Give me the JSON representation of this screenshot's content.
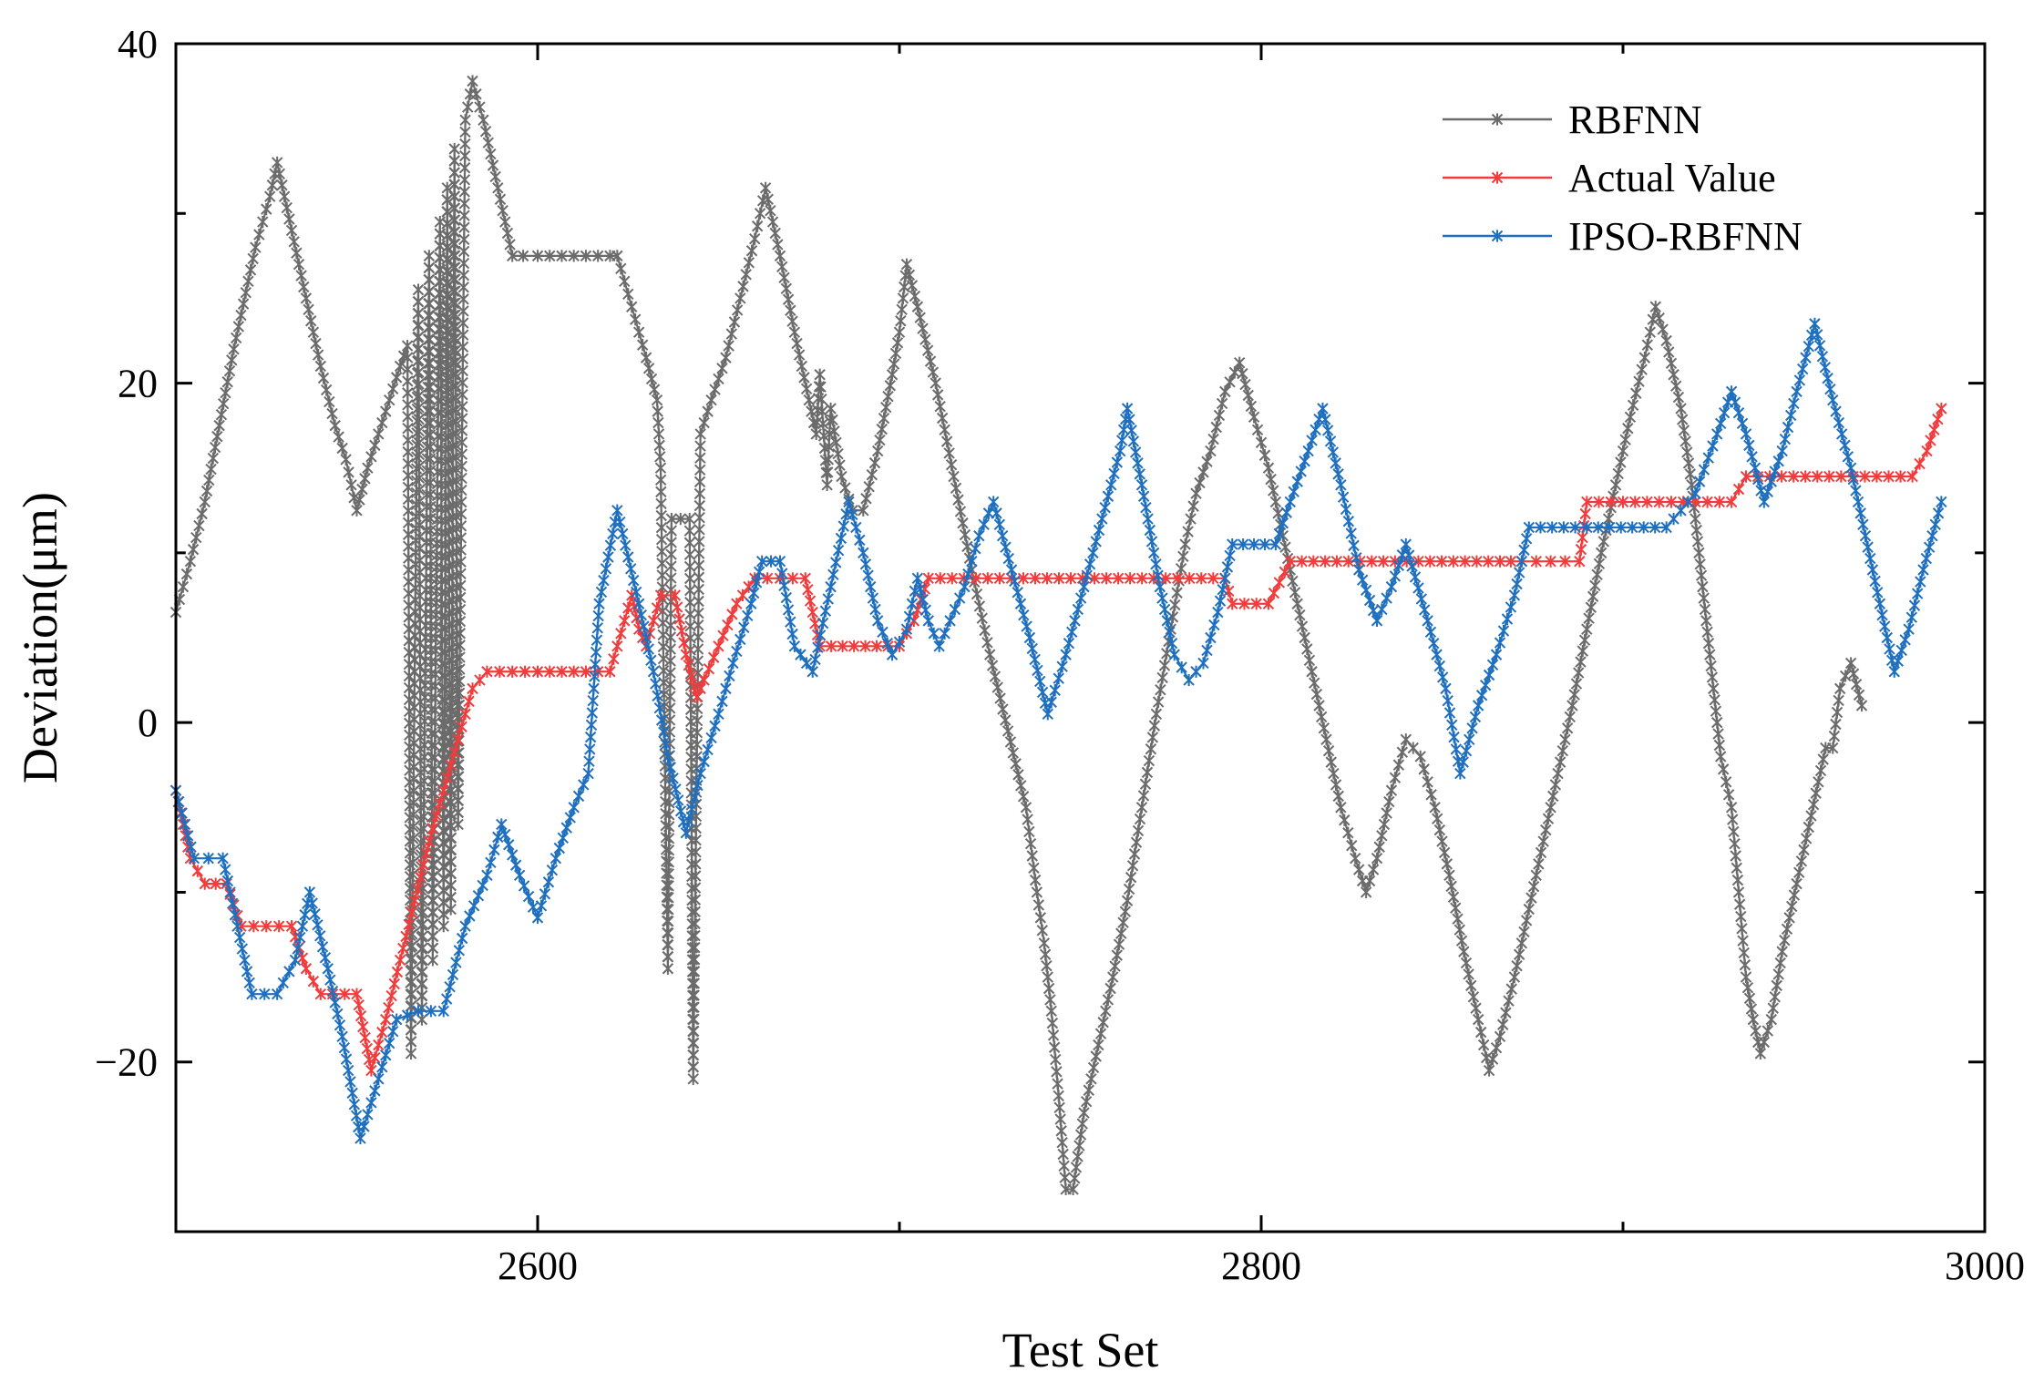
{
  "chart_data": {
    "type": "line",
    "title": "",
    "xlabel": "Test Set",
    "ylabel": "Deviation(μm)",
    "xlim": [
      2500,
      3000
    ],
    "ylim": [
      -30,
      40
    ],
    "xticks": [
      2600,
      2800,
      3000
    ],
    "yticks": [
      -20,
      0,
      20,
      40
    ],
    "grid": false,
    "legend_position": "top-right",
    "series": [
      {
        "name": "RBFNN",
        "color": "#6b6b6b",
        "points": [
          [
            2500,
            6.5
          ],
          [
            2504,
            9.5
          ],
          [
            2508,
            13
          ],
          [
            2512,
            17.5
          ],
          [
            2516,
            22
          ],
          [
            2518,
            24
          ],
          [
            2522,
            28
          ],
          [
            2526,
            31
          ],
          [
            2528,
            33
          ],
          [
            2532,
            29
          ],
          [
            2536,
            25
          ],
          [
            2540,
            21
          ],
          [
            2544,
            17.5
          ],
          [
            2547,
            15.5
          ],
          [
            2550,
            12.5
          ],
          [
            2553,
            15
          ],
          [
            2556,
            17
          ],
          [
            2559,
            19
          ],
          [
            2562,
            21
          ],
          [
            2564,
            22.2
          ],
          [
            2565,
            -19.5
          ],
          [
            2567,
            25.5
          ],
          [
            2568,
            -17.5
          ],
          [
            2570,
            27.5
          ],
          [
            2571,
            -14
          ],
          [
            2573,
            29.5
          ],
          [
            2574,
            -12
          ],
          [
            2575,
            31.5
          ],
          [
            2576,
            -11
          ],
          [
            2577,
            33.8
          ],
          [
            2578,
            -6
          ],
          [
            2580,
            35.5
          ],
          [
            2582,
            37.8
          ],
          [
            2585,
            35.5
          ],
          [
            2589,
            31.5
          ],
          [
            2593,
            27.5
          ],
          [
            2596,
            27.5
          ],
          [
            2600,
            27.5
          ],
          [
            2610,
            27.5
          ],
          [
            2620,
            27.5
          ],
          [
            2622,
            27.5
          ],
          [
            2626,
            24.5
          ],
          [
            2630,
            21.5
          ],
          [
            2633,
            19
          ],
          [
            2634,
            15
          ],
          [
            2636,
            -14.5
          ],
          [
            2637,
            12
          ],
          [
            2642,
            12
          ],
          [
            2643,
            -21
          ],
          [
            2645,
            17
          ],
          [
            2648,
            19
          ],
          [
            2652,
            21.5
          ],
          [
            2656,
            25
          ],
          [
            2660,
            28.5
          ],
          [
            2663,
            31.5
          ],
          [
            2667,
            27.5
          ],
          [
            2671,
            23
          ],
          [
            2675,
            19
          ],
          [
            2677,
            17
          ],
          [
            2678,
            20.5
          ],
          [
            2680,
            14
          ],
          [
            2681,
            18.5
          ],
          [
            2684,
            14.5
          ],
          [
            2687,
            12.5
          ],
          [
            2690,
            12.5
          ],
          [
            2694,
            16
          ],
          [
            2698,
            20.5
          ],
          [
            2700,
            23
          ],
          [
            2702,
            27
          ],
          [
            2705,
            24.5
          ],
          [
            2710,
            20
          ],
          [
            2715,
            14.5
          ],
          [
            2720,
            9
          ],
          [
            2725,
            4
          ],
          [
            2730,
            -0.5
          ],
          [
            2735,
            -5
          ],
          [
            2738,
            -10
          ],
          [
            2740,
            -13
          ],
          [
            2742,
            -17
          ],
          [
            2744,
            -22
          ],
          [
            2746,
            -27.5
          ],
          [
            2748,
            -27.5
          ],
          [
            2751,
            -23
          ],
          [
            2755,
            -19
          ],
          [
            2759,
            -15
          ],
          [
            2763,
            -10.5
          ],
          [
            2767,
            -5
          ],
          [
            2771,
            0.5
          ],
          [
            2775,
            5.5
          ],
          [
            2779,
            10.5
          ],
          [
            2782,
            13.5
          ],
          [
            2786,
            16
          ],
          [
            2790,
            19.5
          ],
          [
            2794,
            21.2
          ],
          [
            2798,
            18
          ],
          [
            2802,
            15
          ],
          [
            2806,
            11
          ],
          [
            2810,
            7
          ],
          [
            2814,
            3
          ],
          [
            2818,
            -1
          ],
          [
            2822,
            -5
          ],
          [
            2826,
            -8
          ],
          [
            2829,
            -10
          ],
          [
            2832,
            -8
          ],
          [
            2836,
            -4
          ],
          [
            2840,
            -1
          ],
          [
            2844,
            -2
          ],
          [
            2848,
            -5
          ],
          [
            2852,
            -9
          ],
          [
            2856,
            -13.5
          ],
          [
            2860,
            -17.5
          ],
          [
            2863,
            -20.5
          ],
          [
            2866,
            -18.5
          ],
          [
            2870,
            -15
          ],
          [
            2874,
            -11
          ],
          [
            2878,
            -7
          ],
          [
            2882,
            -3
          ],
          [
            2886,
            1
          ],
          [
            2890,
            5.5
          ],
          [
            2894,
            10
          ],
          [
            2898,
            14
          ],
          [
            2902,
            18
          ],
          [
            2906,
            21.5
          ],
          [
            2909,
            24.5
          ],
          [
            2912,
            22.5
          ],
          [
            2916,
            18.5
          ],
          [
            2919,
            14
          ],
          [
            2922,
            8
          ],
          [
            2925,
            2
          ],
          [
            2927,
            -2
          ],
          [
            2930,
            -5
          ],
          [
            2932,
            -10
          ],
          [
            2934,
            -15
          ],
          [
            2936,
            -17.5
          ],
          [
            2938,
            -19.5
          ],
          [
            2941,
            -17.5
          ],
          [
            2944,
            -13.5
          ],
          [
            2948,
            -9.5
          ],
          [
            2952,
            -5.5
          ],
          [
            2956,
            -1.5
          ],
          [
            2958,
            -1.5
          ],
          [
            2960,
            2
          ],
          [
            2963,
            3.5
          ],
          [
            2966,
            1
          ]
        ]
      },
      {
        "name": "Actual Value",
        "color": "#f03c3c",
        "points": [
          [
            2500,
            -4
          ],
          [
            2504,
            -8
          ],
          [
            2508,
            -9.5
          ],
          [
            2514,
            -9.5
          ],
          [
            2518,
            -12
          ],
          [
            2532,
            -12
          ],
          [
            2536,
            -14.5
          ],
          [
            2540,
            -16
          ],
          [
            2550,
            -16
          ],
          [
            2554,
            -20.5
          ],
          [
            2558,
            -17.5
          ],
          [
            2562,
            -14
          ],
          [
            2566,
            -10.5
          ],
          [
            2570,
            -7
          ],
          [
            2574,
            -4
          ],
          [
            2578,
            -1
          ],
          [
            2582,
            2
          ],
          [
            2586,
            3
          ],
          [
            2600,
            3
          ],
          [
            2620,
            3
          ],
          [
            2624,
            6
          ],
          [
            2626,
            7.5
          ],
          [
            2628,
            5.5
          ],
          [
            2630,
            4.5
          ],
          [
            2632,
            6
          ],
          [
            2634,
            7.5
          ],
          [
            2638,
            7.5
          ],
          [
            2641,
            4
          ],
          [
            2644,
            1.5
          ],
          [
            2646,
            2.5
          ],
          [
            2650,
            4.5
          ],
          [
            2655,
            7
          ],
          [
            2660,
            8.5
          ],
          [
            2674,
            8.5
          ],
          [
            2678,
            4.5
          ],
          [
            2700,
            4.5
          ],
          [
            2704,
            6
          ],
          [
            2708,
            8.5
          ],
          [
            2790,
            8.5
          ],
          [
            2792,
            7
          ],
          [
            2802,
            7
          ],
          [
            2808,
            9.5
          ],
          [
            2866,
            9.5
          ],
          [
            2872,
            9.5
          ],
          [
            2880,
            9.5
          ],
          [
            2888,
            9.5
          ],
          [
            2890,
            13
          ],
          [
            2930,
            13
          ],
          [
            2934,
            14.5
          ],
          [
            2980,
            14.5
          ],
          [
            2984,
            16
          ],
          [
            2988,
            18.5
          ]
        ]
      },
      {
        "name": "IPSO-RBFNN",
        "color": "#1f6fbf",
        "points": [
          [
            2500,
            -4
          ],
          [
            2505,
            -8
          ],
          [
            2513,
            -8
          ],
          [
            2517,
            -12
          ],
          [
            2521,
            -16
          ],
          [
            2528,
            -16
          ],
          [
            2533,
            -14
          ],
          [
            2537,
            -10
          ],
          [
            2542,
            -14.5
          ],
          [
            2546,
            -18.5
          ],
          [
            2551,
            -24.5
          ],
          [
            2556,
            -21
          ],
          [
            2561,
            -17.5
          ],
          [
            2567,
            -17
          ],
          [
            2574,
            -17
          ],
          [
            2580,
            -12
          ],
          [
            2586,
            -9
          ],
          [
            2590,
            -6
          ],
          [
            2595,
            -9
          ],
          [
            2600,
            -11.5
          ],
          [
            2605,
            -8
          ],
          [
            2610,
            -5
          ],
          [
            2614,
            -3
          ],
          [
            2617,
            7
          ],
          [
            2622,
            12.5
          ],
          [
            2628,
            7
          ],
          [
            2632,
            3
          ],
          [
            2636,
            -2
          ],
          [
            2641,
            -6.5
          ],
          [
            2645,
            -3
          ],
          [
            2650,
            0.5
          ],
          [
            2654,
            3.5
          ],
          [
            2659,
            7
          ],
          [
            2662,
            9.5
          ],
          [
            2667,
            9.5
          ],
          [
            2671,
            4.5
          ],
          [
            2676,
            3
          ],
          [
            2681,
            8
          ],
          [
            2686,
            13
          ],
          [
            2690,
            10
          ],
          [
            2694,
            6
          ],
          [
            2698,
            4
          ],
          [
            2702,
            5.5
          ],
          [
            2705,
            8.5
          ],
          [
            2708,
            6
          ],
          [
            2711,
            4.5
          ],
          [
            2714,
            6
          ],
          [
            2718,
            8
          ],
          [
            2722,
            11
          ],
          [
            2726,
            13
          ],
          [
            2731,
            9
          ],
          [
            2736,
            5
          ],
          [
            2741,
            0.5
          ],
          [
            2746,
            4
          ],
          [
            2751,
            8
          ],
          [
            2756,
            12
          ],
          [
            2761,
            16
          ],
          [
            2763,
            18.5
          ],
          [
            2767,
            14
          ],
          [
            2772,
            8
          ],
          [
            2776,
            4
          ],
          [
            2780,
            2.5
          ],
          [
            2784,
            3.5
          ],
          [
            2788,
            6.5
          ],
          [
            2792,
            10.5
          ],
          [
            2804,
            10.5
          ],
          [
            2808,
            13
          ],
          [
            2813,
            16
          ],
          [
            2817,
            18.5
          ],
          [
            2822,
            14
          ],
          [
            2827,
            9
          ],
          [
            2832,
            6
          ],
          [
            2836,
            8
          ],
          [
            2840,
            10.5
          ],
          [
            2846,
            6
          ],
          [
            2851,
            2
          ],
          [
            2855,
            -3
          ],
          [
            2860,
            1
          ],
          [
            2865,
            4
          ],
          [
            2870,
            7.5
          ],
          [
            2874,
            11.5
          ],
          [
            2890,
            11.5
          ],
          [
            2912,
            11.5
          ],
          [
            2920,
            13.5
          ],
          [
            2926,
            17
          ],
          [
            2930,
            19.5
          ],
          [
            2934,
            17
          ],
          [
            2939,
            13
          ],
          [
            2944,
            16
          ],
          [
            2948,
            19.5
          ],
          [
            2953,
            23.5
          ],
          [
            2958,
            19
          ],
          [
            2963,
            15
          ],
          [
            2967,
            11
          ],
          [
            2971,
            7
          ],
          [
            2975,
            3
          ],
          [
            2979,
            5.5
          ],
          [
            2983,
            9
          ],
          [
            2988,
            13
          ]
        ]
      }
    ]
  }
}
